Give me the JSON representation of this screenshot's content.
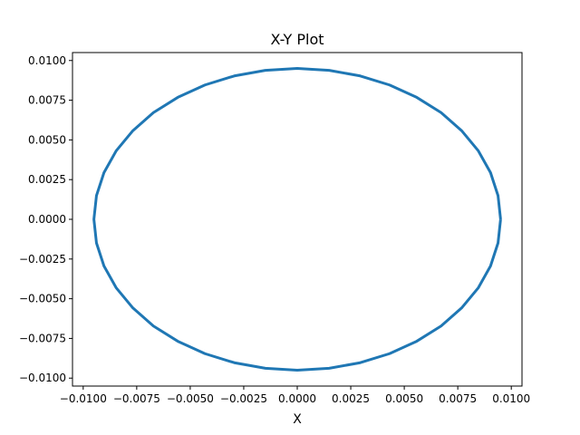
{
  "chart_data": {
    "type": "line",
    "title": "X-Y Plot",
    "xlabel": "X",
    "ylabel": "",
    "xlim": [
      -0.0105,
      0.0105
    ],
    "ylim": [
      -0.0105,
      0.0105
    ],
    "x_ticks": [
      -0.01,
      -0.0075,
      -0.005,
      -0.0025,
      0.0,
      0.0025,
      0.005,
      0.0075,
      0.01
    ],
    "x_tick_labels": [
      "−0.0100",
      "−0.0075",
      "−0.0050",
      "−0.0025",
      "0.0000",
      "0.0025",
      "0.0050",
      "0.0075",
      "0.0100"
    ],
    "y_ticks": [
      0.01,
      0.0075,
      0.005,
      0.0025,
      0.0,
      -0.0025,
      -0.005,
      -0.0075,
      -0.01
    ],
    "y_tick_labels": [
      "0.0100",
      "0.0075",
      "0.0050",
      "0.0025",
      "0.0000",
      "−0.0025",
      "−0.0050",
      "−0.0075",
      "−0.0100"
    ],
    "grid": false,
    "legend": "none",
    "series": [
      {
        "color": "#1f77b4",
        "x": [
          0.0095,
          0.00938,
          0.00903,
          0.00846,
          0.00768,
          0.00672,
          0.00558,
          0.00431,
          0.00294,
          0.00149,
          0.0,
          -0.00149,
          -0.00294,
          -0.00431,
          -0.00558,
          -0.00672,
          -0.00768,
          -0.00846,
          -0.00903,
          -0.00938,
          -0.0095,
          -0.00938,
          -0.00903,
          -0.00846,
          -0.00768,
          -0.00672,
          -0.00558,
          -0.00431,
          -0.00294,
          -0.00149,
          0.0,
          0.00149,
          0.00294,
          0.00431,
          0.00558,
          0.00672,
          0.00768,
          0.00846,
          0.00903,
          0.00938,
          0.0095
        ],
        "y": [
          0.0,
          0.00149,
          0.00294,
          0.00431,
          0.00558,
          0.00672,
          0.00768,
          0.00846,
          0.00903,
          0.00938,
          0.0095,
          0.00938,
          0.00903,
          0.00846,
          0.00768,
          0.00672,
          0.00558,
          0.00431,
          0.00294,
          0.00149,
          0.0,
          -0.00149,
          -0.00294,
          -0.00431,
          -0.00558,
          -0.00672,
          -0.00768,
          -0.00846,
          -0.00903,
          -0.00938,
          -0.0095,
          -0.00938,
          -0.00903,
          -0.00846,
          -0.00768,
          -0.00672,
          -0.00558,
          -0.00431,
          -0.00294,
          -0.00149,
          0.0
        ]
      }
    ]
  }
}
